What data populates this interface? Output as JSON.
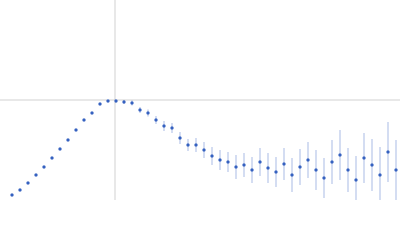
{
  "chart_data": {
    "type": "scatter",
    "x": [
      0.012,
      0.02,
      0.028,
      0.036,
      0.044,
      0.052,
      0.06,
      0.068,
      0.076,
      0.084,
      0.092,
      0.1,
      0.108,
      0.116,
      0.124,
      0.132,
      0.14,
      0.148,
      0.156,
      0.164,
      0.172,
      0.18,
      0.188,
      0.196,
      0.204,
      0.212,
      0.22,
      0.228,
      0.236,
      0.244,
      0.252,
      0.26,
      0.268,
      0.276,
      0.284,
      0.292,
      0.3,
      0.308,
      0.316,
      0.324,
      0.332,
      0.34,
      0.348,
      0.356,
      0.364,
      0.372,
      0.38,
      0.388,
      0.396
    ],
    "values": [
      0.05,
      0.1,
      0.17,
      0.25,
      0.33,
      0.42,
      0.51,
      0.6,
      0.7,
      0.8,
      0.87,
      0.96,
      0.99,
      0.99,
      0.98,
      0.97,
      0.9,
      0.87,
      0.8,
      0.74,
      0.72,
      0.62,
      0.55,
      0.55,
      0.5,
      0.44,
      0.4,
      0.38,
      0.33,
      0.35,
      0.3,
      0.38,
      0.32,
      0.28,
      0.36,
      0.25,
      0.33,
      0.4,
      0.3,
      0.22,
      0.38,
      0.45,
      0.3,
      0.2,
      0.42,
      0.35,
      0.25,
      0.48,
      0.3
    ],
    "errors": [
      0.005,
      0.005,
      0.005,
      0.005,
      0.005,
      0.006,
      0.006,
      0.007,
      0.008,
      0.01,
      0.012,
      0.014,
      0.016,
      0.018,
      0.02,
      0.025,
      0.03,
      0.035,
      0.04,
      0.05,
      0.05,
      0.06,
      0.06,
      0.07,
      0.08,
      0.09,
      0.1,
      0.1,
      0.12,
      0.12,
      0.13,
      0.14,
      0.15,
      0.15,
      0.16,
      0.17,
      0.18,
      0.18,
      0.2,
      0.2,
      0.22,
      0.25,
      0.22,
      0.24,
      0.25,
      0.26,
      0.28,
      0.3,
      0.3
    ],
    "color": "#3561c0",
    "error_color": "#a9bbe4",
    "xlim": [
      0,
      0.4
    ],
    "ylim": [
      0,
      2
    ],
    "xticks": [
      0.115
    ],
    "yticks": [
      1
    ],
    "grid": true
  }
}
